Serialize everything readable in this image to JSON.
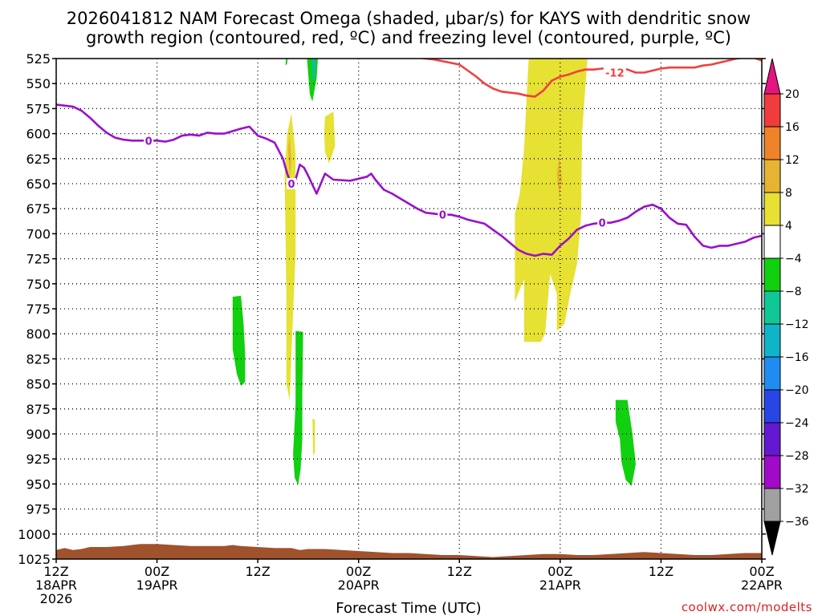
{
  "chart_data": {
    "type": "time-height cross section",
    "title_line1": "2026041812 NAM Forecast Omega (shaded, μbar/s) for KAYS with dendritic snow",
    "title_line2": "growth region (contoured, red, ºC) and freezing level (contoured, purple, ºC)",
    "xlabel": "Forecast Time (UTC)",
    "credit": "coolwx.com/modelts",
    "xlim": [
      0,
      84
    ],
    "ylim": [
      525,
      1025
    ],
    "pressure_ticks": [
      525,
      550,
      575,
      600,
      625,
      650,
      675,
      700,
      725,
      750,
      775,
      800,
      825,
      850,
      875,
      900,
      925,
      950,
      975,
      1000,
      1025
    ],
    "time_ticks": [
      {
        "t": 0,
        "line1": "12Z",
        "line2": "18APR",
        "line3": "2026"
      },
      {
        "t": 12,
        "line1": "00Z",
        "line2": "19APR",
        "line3": ""
      },
      {
        "t": 24,
        "line1": "12Z",
        "line2": "",
        "line3": ""
      },
      {
        "t": 36,
        "line1": "00Z",
        "line2": "20APR",
        "line3": ""
      },
      {
        "t": 48,
        "line1": "12Z",
        "line2": "",
        "line3": ""
      },
      {
        "t": 60,
        "line1": "00Z",
        "line2": "21APR",
        "line3": ""
      },
      {
        "t": 72,
        "line1": "12Z",
        "line2": "",
        "line3": ""
      },
      {
        "t": 84,
        "line1": "00Z",
        "line2": "22APR",
        "line3": ""
      }
    ],
    "colorbar": {
      "bins": [
        {
          "from": 16,
          "to": 20,
          "color": "#f03c3c"
        },
        {
          "from": 12,
          "to": 16,
          "color": "#f08228"
        },
        {
          "from": 8,
          "to": 12,
          "color": "#e6b432"
        },
        {
          "from": 4,
          "to": 8,
          "color": "#e6e132"
        },
        {
          "from": -4,
          "to": 4,
          "color": "#ffffff"
        },
        {
          "from": -8,
          "to": -4,
          "color": "#10d010"
        },
        {
          "from": -12,
          "to": -8,
          "color": "#10c896"
        },
        {
          "from": -16,
          "to": -12,
          "color": "#10b4c8"
        },
        {
          "from": -20,
          "to": -16,
          "color": "#1e8cf0"
        },
        {
          "from": -24,
          "to": -20,
          "color": "#2846e6"
        },
        {
          "from": -28,
          "to": -24,
          "color": "#6418d2"
        },
        {
          "from": -32,
          "to": -28,
          "color": "#a00ac8"
        },
        {
          "from": -36,
          "to": -32,
          "color": "#a0a0a0"
        }
      ],
      "labels": [
        "20",
        "16",
        "12",
        "8",
        "4",
        "−4",
        "−8",
        "−12",
        "−16",
        "−20",
        "−24",
        "−28",
        "−32",
        "−36"
      ],
      "top_color": "#e6147e",
      "bottom_color": "#000000"
    },
    "freezing_level": {
      "label": "0",
      "color": "#9a10cc",
      "label_positions": [
        {
          "t": 11,
          "p": 607
        },
        {
          "t": 28,
          "p": 650
        },
        {
          "t": 46,
          "p": 681
        },
        {
          "t": 65,
          "p": 689
        }
      ],
      "points": [
        [
          0,
          571
        ],
        [
          2,
          573
        ],
        [
          3,
          577
        ],
        [
          4,
          584
        ],
        [
          5,
          592
        ],
        [
          6,
          599
        ],
        [
          7,
          604
        ],
        [
          8,
          606
        ],
        [
          9,
          607
        ],
        [
          10,
          607
        ],
        [
          12,
          607
        ],
        [
          13,
          608
        ],
        [
          14,
          606
        ],
        [
          15,
          602
        ],
        [
          16,
          601
        ],
        [
          17,
          602
        ],
        [
          18,
          599
        ],
        [
          19,
          600
        ],
        [
          20,
          600
        ],
        [
          22,
          595
        ],
        [
          23,
          593
        ],
        [
          24,
          602
        ],
        [
          25,
          605
        ],
        [
          26,
          609
        ],
        [
          27,
          625
        ],
        [
          27.5,
          640
        ],
        [
          28,
          651
        ],
        [
          28.5,
          646
        ],
        [
          29,
          631
        ],
        [
          29.5,
          634
        ],
        [
          30,
          642
        ],
        [
          31,
          660
        ],
        [
          32,
          640
        ],
        [
          33,
          646
        ],
        [
          35,
          647
        ],
        [
          36,
          645
        ],
        [
          37,
          643
        ],
        [
          37.5,
          640
        ],
        [
          38,
          646
        ],
        [
          39,
          656
        ],
        [
          40,
          660
        ],
        [
          41,
          665
        ],
        [
          42,
          670
        ],
        [
          43,
          675
        ],
        [
          44,
          679
        ],
        [
          46,
          681
        ],
        [
          47,
          681
        ],
        [
          48,
          683
        ],
        [
          49,
          686
        ],
        [
          50,
          688
        ],
        [
          51,
          690
        ],
        [
          52,
          696
        ],
        [
          53,
          702
        ],
        [
          54,
          709
        ],
        [
          55,
          716
        ],
        [
          56,
          720
        ],
        [
          57,
          722
        ],
        [
          58,
          720
        ],
        [
          59,
          721
        ],
        [
          60,
          712
        ],
        [
          61,
          705
        ],
        [
          62,
          696
        ],
        [
          63,
          692
        ],
        [
          64,
          690
        ],
        [
          65,
          689
        ],
        [
          66,
          689
        ],
        [
          67,
          687
        ],
        [
          68,
          684
        ],
        [
          69,
          678
        ],
        [
          70,
          673
        ],
        [
          71,
          671
        ],
        [
          72,
          675
        ],
        [
          73,
          684
        ],
        [
          74,
          690
        ],
        [
          75,
          691
        ],
        [
          76,
          703
        ],
        [
          77,
          712
        ],
        [
          78,
          714
        ],
        [
          79,
          712
        ],
        [
          80,
          712
        ],
        [
          81,
          710
        ],
        [
          82,
          708
        ],
        [
          83,
          704
        ],
        [
          84,
          702
        ]
      ]
    },
    "dgz_minus12": {
      "label": "-12",
      "color": "#f04040",
      "label_position": {
        "t": 66.5,
        "p": 539
      },
      "points": [
        [
          40.5,
          521
        ],
        [
          42,
          522
        ],
        [
          43,
          524
        ],
        [
          45,
          526
        ],
        [
          48,
          531
        ],
        [
          49,
          537
        ],
        [
          50,
          543
        ],
        [
          51,
          550
        ],
        [
          52,
          555
        ],
        [
          53,
          558
        ],
        [
          55,
          560
        ],
        [
          56,
          562
        ],
        [
          57,
          563
        ],
        [
          58,
          557
        ],
        [
          59,
          547
        ],
        [
          60,
          543
        ],
        [
          61,
          541
        ],
        [
          62,
          538
        ],
        [
          63,
          536
        ],
        [
          64,
          536
        ],
        [
          65,
          535
        ],
        [
          66,
          535
        ],
        [
          67,
          535
        ],
        [
          68,
          536
        ],
        [
          69,
          539
        ],
        [
          70,
          539
        ],
        [
          71,
          537
        ],
        [
          72,
          535
        ],
        [
          73,
          534
        ],
        [
          74,
          534
        ],
        [
          75,
          534
        ],
        [
          76,
          534
        ],
        [
          77,
          532
        ],
        [
          78,
          531
        ],
        [
          79,
          529
        ],
        [
          80,
          527
        ],
        [
          81,
          525
        ],
        [
          82,
          524
        ],
        [
          83,
          524
        ],
        [
          84,
          527
        ]
      ]
    },
    "shaded_regions": [
      {
        "color": "#10d010",
        "desc": "-4 to -8",
        "points": [
          [
            21,
            763
          ],
          [
            22,
            762
          ],
          [
            22.3,
            790
          ],
          [
            22.5,
            820
          ],
          [
            22.5,
            848
          ],
          [
            22,
            852
          ],
          [
            21.5,
            840
          ],
          [
            21,
            815
          ]
        ]
      },
      {
        "color": "#10d010",
        "desc": "-4 to -8",
        "points": [
          [
            28.5,
            797
          ],
          [
            29.4,
            798
          ],
          [
            29.3,
            860
          ],
          [
            29.3,
            905
          ],
          [
            29.1,
            935
          ],
          [
            28.8,
            951
          ],
          [
            28.4,
            944
          ],
          [
            28.2,
            920
          ],
          [
            28.5,
            870
          ]
        ]
      },
      {
        "color": "#10d010",
        "desc": "-4 to -8",
        "points": [
          [
            66.6,
            866
          ],
          [
            68,
            866
          ],
          [
            68.6,
            900
          ],
          [
            69,
            930
          ],
          [
            68.5,
            952
          ],
          [
            67.8,
            946
          ],
          [
            67.3,
            928
          ],
          [
            67.1,
            905
          ],
          [
            66.6,
            888
          ]
        ]
      },
      {
        "color": "#10d010",
        "desc": "-4 to -8",
        "points": [
          [
            29.8,
            518
          ],
          [
            31.2,
            518
          ],
          [
            31,
            545
          ],
          [
            30.5,
            568
          ],
          [
            30.2,
            561
          ],
          [
            30,
            540
          ]
        ]
      },
      {
        "color": "#10d010",
        "desc": "-4 to -8",
        "points": [
          [
            27.4,
            518
          ],
          [
            27.6,
            518
          ],
          [
            27.5,
            530
          ],
          [
            27.3,
            532
          ]
        ]
      },
      {
        "color": "#10b4c8",
        "desc": "-12 to -16",
        "points": [
          [
            30.5,
            525
          ],
          [
            30.9,
            526
          ],
          [
            30.8,
            545
          ],
          [
            30.6,
            548
          ]
        ]
      },
      {
        "color": "#e6e132",
        "desc": "4 to 8",
        "points": [
          [
            27.5,
            600
          ],
          [
            28,
            580
          ],
          [
            28.5,
            620
          ],
          [
            28.5,
            720
          ],
          [
            28.1,
            800
          ],
          [
            27.8,
            866
          ],
          [
            27.4,
            850
          ],
          [
            27.4,
            760
          ],
          [
            27.2,
            640
          ]
        ]
      },
      {
        "color": "#e6e132",
        "desc": "4 to 8",
        "points": [
          [
            32,
            583
          ],
          [
            33,
            578
          ],
          [
            33.2,
            612
          ],
          [
            32.5,
            630
          ],
          [
            32,
            618
          ],
          [
            31.9,
            600
          ]
        ]
      },
      {
        "color": "#e6e132",
        "desc": "4 to 8",
        "points": [
          [
            30.5,
            885
          ],
          [
            30.8,
            886
          ],
          [
            30.8,
            918
          ],
          [
            30.6,
            922
          ]
        ]
      },
      {
        "color": "#e6e132",
        "desc": "4 to 8",
        "points": [
          [
            56.3,
            519
          ],
          [
            63.3,
            519
          ],
          [
            63,
            552
          ],
          [
            62.6,
            600
          ],
          [
            62.5,
            680
          ],
          [
            62,
            730
          ],
          [
            61.2,
            760
          ],
          [
            60.5,
            790
          ],
          [
            59.6,
            797
          ],
          [
            59.6,
            760
          ],
          [
            58.8,
            740
          ],
          [
            58.2,
            800
          ],
          [
            57.7,
            808
          ],
          [
            55.7,
            808
          ],
          [
            55.7,
            745
          ],
          [
            54.6,
            768
          ],
          [
            54.6,
            680
          ],
          [
            55.2,
            660
          ],
          [
            55.7,
            615
          ],
          [
            56.1,
            548
          ]
        ]
      },
      {
        "color": "#e6b432",
        "desc": "8 to 12",
        "points": [
          [
            59.6,
            640
          ],
          [
            59.9,
            622
          ],
          [
            60.2,
            645
          ],
          [
            59.9,
            665
          ]
        ]
      },
      {
        "color": "#e6b432",
        "desc": "8 to 12",
        "points": [
          [
            27.6,
            614
          ],
          [
            27.8,
            602
          ],
          [
            28,
            628
          ],
          [
            27.8,
            645
          ]
        ]
      }
    ],
    "terrain": {
      "color": "#a0522d",
      "top_edge": [
        [
          0,
          1016
        ],
        [
          1,
          1014
        ],
        [
          2,
          1016
        ],
        [
          3,
          1015
        ],
        [
          4,
          1013
        ],
        [
          6,
          1013
        ],
        [
          8,
          1012
        ],
        [
          10,
          1010
        ],
        [
          12,
          1010
        ],
        [
          14,
          1011
        ],
        [
          16,
          1012
        ],
        [
          18,
          1012
        ],
        [
          20,
          1012
        ],
        [
          21,
          1011
        ],
        [
          22,
          1012
        ],
        [
          24,
          1013
        ],
        [
          26,
          1014
        ],
        [
          28,
          1014
        ],
        [
          29,
          1016
        ],
        [
          30,
          1015
        ],
        [
          32,
          1015
        ],
        [
          34,
          1016
        ],
        [
          36,
          1017
        ],
        [
          38,
          1018
        ],
        [
          40,
          1019
        ],
        [
          42,
          1019
        ],
        [
          44,
          1020
        ],
        [
          46,
          1021
        ],
        [
          48,
          1021
        ],
        [
          50,
          1022
        ],
        [
          52,
          1023
        ],
        [
          54,
          1022
        ],
        [
          56,
          1021
        ],
        [
          58,
          1020
        ],
        [
          60,
          1020
        ],
        [
          62,
          1021
        ],
        [
          64,
          1021
        ],
        [
          66,
          1020
        ],
        [
          68,
          1019
        ],
        [
          70,
          1018
        ],
        [
          72,
          1019
        ],
        [
          74,
          1020
        ],
        [
          76,
          1021
        ],
        [
          78,
          1021
        ],
        [
          80,
          1020
        ],
        [
          82,
          1019
        ],
        [
          84,
          1019
        ]
      ]
    }
  }
}
